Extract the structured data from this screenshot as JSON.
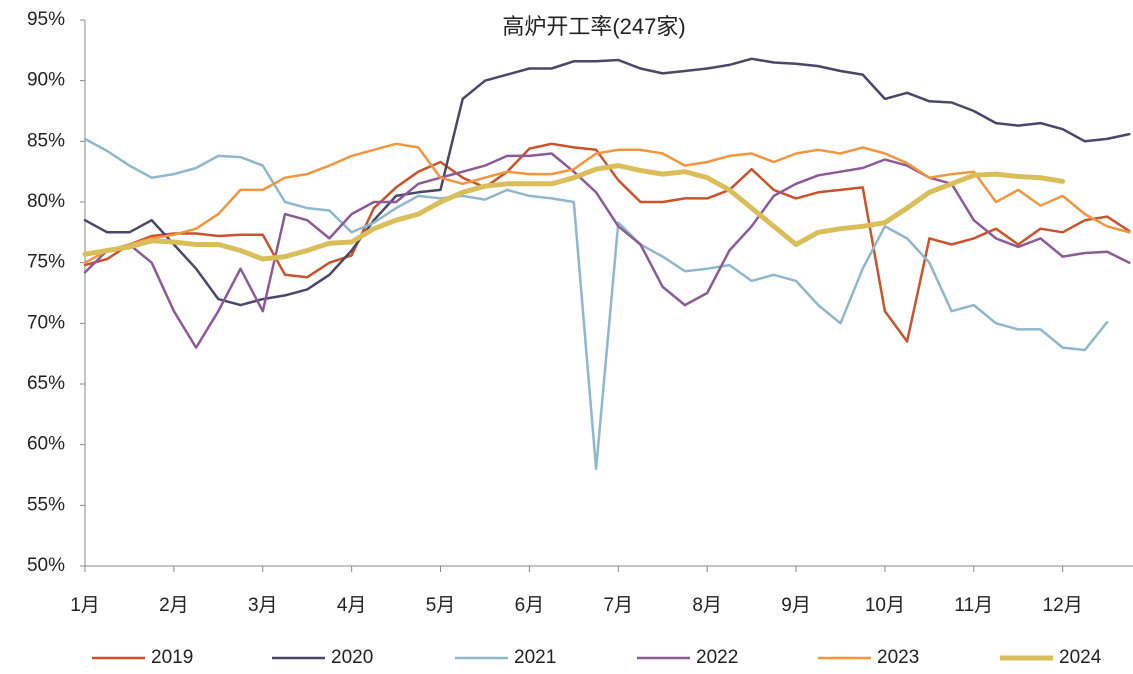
{
  "chart_data": {
    "type": "line",
    "title": "高炉开工率(247家)",
    "categories": [
      "1月",
      null,
      null,
      null,
      "2月",
      null,
      null,
      null,
      "3月",
      null,
      null,
      null,
      "4月",
      null,
      null,
      null,
      "5月",
      null,
      null,
      null,
      "6月",
      null,
      null,
      null,
      "7月",
      null,
      null,
      null,
      "8月",
      null,
      null,
      null,
      "9月",
      null,
      null,
      null,
      "10月",
      null,
      null,
      null,
      "11月",
      null,
      null,
      null,
      "12月",
      null,
      null,
      null
    ],
    "ylim": [
      50,
      95
    ],
    "yticks": [
      {
        "value": 50,
        "label": "50%"
      },
      {
        "value": 55,
        "label": "55%"
      },
      {
        "value": 60,
        "label": "60%"
      },
      {
        "value": 65,
        "label": "65%"
      },
      {
        "value": 70,
        "label": "70%"
      },
      {
        "value": 75,
        "label": "75%"
      },
      {
        "value": 80,
        "label": "80%"
      },
      {
        "value": 85,
        "label": "85%"
      },
      {
        "value": 90,
        "label": "90%"
      },
      {
        "value": 95,
        "label": "95%"
      }
    ],
    "grid": false,
    "legend": "bottom",
    "series": [
      {
        "name": "2019",
        "color": "#c9532b",
        "line_width": 2.5,
        "values": [
          74.8,
          75.3,
          76.5,
          77.2,
          77.4,
          77.4,
          77.2,
          77.3,
          77.3,
          74.0,
          73.8,
          75.0,
          75.6,
          79.5,
          81.2,
          82.5,
          83.3,
          82.0,
          81.2,
          82.5,
          84.4,
          84.8,
          84.5,
          84.3,
          81.8,
          80.0,
          80.0,
          80.3,
          80.3,
          81.0,
          82.7,
          81.0,
          80.3,
          80.8,
          81.0,
          81.2,
          71.0,
          68.5,
          77.0,
          76.5,
          77.0,
          77.8,
          76.5,
          77.8,
          77.5,
          78.5,
          78.8,
          77.6
        ]
      },
      {
        "name": "2020",
        "color": "#4b4769",
        "line_width": 2.5,
        "values": [
          78.5,
          77.5,
          77.5,
          78.5,
          76.5,
          74.5,
          72.0,
          71.5,
          72.0,
          72.3,
          72.8,
          74.0,
          76.0,
          78.5,
          80.5,
          80.8,
          81.0,
          88.5,
          90.0,
          90.5,
          91.0,
          91.0,
          91.6,
          91.6,
          91.7,
          91.0,
          90.6,
          90.8,
          91.0,
          91.3,
          91.8,
          91.5,
          91.4,
          91.2,
          90.8,
          90.5,
          88.5,
          89.0,
          88.3,
          88.2,
          87.5,
          86.5,
          86.3,
          86.5,
          86.0,
          85.0,
          85.2,
          85.6
        ]
      },
      {
        "name": "2021",
        "color": "#8fb8cb",
        "line_width": 2.5,
        "values": [
          85.2,
          84.2,
          83.0,
          82.0,
          82.3,
          82.8,
          83.8,
          83.7,
          83.0,
          80.0,
          79.5,
          79.3,
          77.5,
          78.3,
          79.5,
          80.5,
          80.3,
          80.5,
          80.2,
          81.0,
          80.5,
          80.3,
          80.0,
          58.0,
          78.3,
          76.5,
          75.5,
          74.3,
          74.5,
          74.8,
          73.5,
          74.0,
          73.5,
          71.5,
          70.0,
          74.5,
          78.0,
          77.0,
          75.0,
          71.0,
          71.5,
          70.0,
          69.5,
          69.5,
          68.0,
          67.8,
          70.1,
          null
        ]
      },
      {
        "name": "2022",
        "color": "#8c5b97",
        "line_width": 2.5,
        "values": [
          74.2,
          76.0,
          76.5,
          75.0,
          71.0,
          68.0,
          71.0,
          74.5,
          71.0,
          79.0,
          78.5,
          77.0,
          79.0,
          80.0,
          80.0,
          81.5,
          82.0,
          82.5,
          83.0,
          83.8,
          83.8,
          84.0,
          82.5,
          80.8,
          78.0,
          76.5,
          73.0,
          71.5,
          72.5,
          76.0,
          78.0,
          80.5,
          81.5,
          82.2,
          82.5,
          82.8,
          83.5,
          83.0,
          82.0,
          81.5,
          78.5,
          77.0,
          76.3,
          77.0,
          75.5,
          75.8,
          75.9,
          75.0
        ]
      },
      {
        "name": "2023",
        "color": "#f1963f",
        "line_width": 2.5,
        "values": [
          75.0,
          76.0,
          76.5,
          77.0,
          77.3,
          77.8,
          79.0,
          81.0,
          81.0,
          82.0,
          82.3,
          83.0,
          83.8,
          84.3,
          84.8,
          84.5,
          82.0,
          81.5,
          82.0,
          82.5,
          82.3,
          82.3,
          82.7,
          84.0,
          84.3,
          84.3,
          84.0,
          83.0,
          83.3,
          83.8,
          84.0,
          83.3,
          84.0,
          84.3,
          84.0,
          84.5,
          84.0,
          83.2,
          82.0,
          82.3,
          82.5,
          80.0,
          81.0,
          79.7,
          80.5,
          79.0,
          78.0,
          77.5
        ]
      },
      {
        "name": "2024",
        "color": "#d9be5a",
        "line_width": 5,
        "values": [
          75.7,
          76.0,
          76.3,
          76.8,
          76.7,
          76.5,
          76.5,
          76.0,
          75.3,
          75.5,
          76.0,
          76.6,
          76.7,
          77.8,
          78.5,
          79.0,
          80.0,
          80.8,
          81.3,
          81.5,
          81.5,
          81.5,
          82.0,
          82.7,
          83.0,
          82.6,
          82.3,
          82.5,
          82.0,
          81.0,
          79.5,
          78.0,
          76.5,
          77.5,
          77.8,
          78.0,
          78.3,
          79.5,
          80.8,
          81.5,
          82.2,
          82.3,
          82.1,
          82.0,
          81.7,
          null,
          null,
          null
        ]
      }
    ]
  }
}
